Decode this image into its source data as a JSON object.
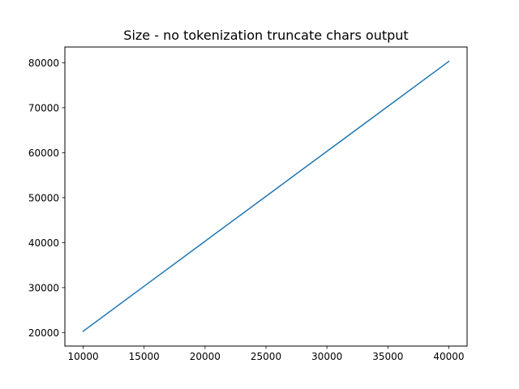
{
  "chart_data": {
    "type": "line",
    "title": "Size - no tokenization truncate chars output",
    "xlabel": "",
    "ylabel": "",
    "xlim": [
      8500,
      41500
    ],
    "ylim": [
      17000,
      83500
    ],
    "xticks": [
      10000,
      15000,
      20000,
      25000,
      30000,
      35000,
      40000
    ],
    "yticks": [
      20000,
      30000,
      40000,
      50000,
      60000,
      70000,
      80000
    ],
    "grid": false,
    "legend": "none",
    "series": [
      {
        "color": "#1f77b4",
        "x": [
          10000,
          15000,
          20000,
          25000,
          30000,
          35000,
          40000
        ],
        "y": [
          20300,
          30300,
          40300,
          50300,
          60300,
          70300,
          80300
        ]
      }
    ]
  }
}
